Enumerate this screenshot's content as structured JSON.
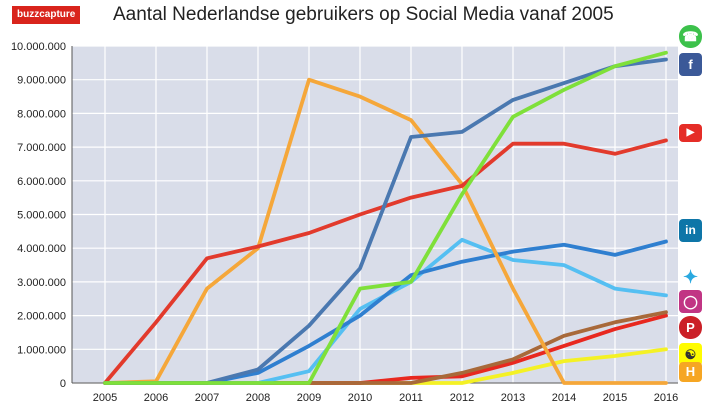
{
  "brand": {
    "logo_text": "buzzcapture"
  },
  "chart_data": {
    "type": "line",
    "title": "Aantal Nederlandse gebruikers op Social Media vanaf 2005",
    "x": [
      "2005",
      "2006",
      "2007",
      "2008",
      "2009",
      "2010",
      "2011",
      "2012",
      "2013",
      "2014",
      "2015",
      "2016"
    ],
    "ylim": [
      0,
      10000000
    ],
    "yticks": [
      "0",
      "1.000.000",
      "2.000.000",
      "3.000.000",
      "4.000.000",
      "5.000.000",
      "6.000.000",
      "7.000.000",
      "8.000.000",
      "9.000.000",
      "10.000.000"
    ],
    "grid": true,
    "legend": "right, platform icons at series ends",
    "series": [
      {
        "icon": "whatsapp-icon",
        "color": "#7fe03a",
        "values": [
          0,
          0,
          0,
          0,
          0,
          2800000,
          3000000,
          5600000,
          7900000,
          8700000,
          9400000,
          9800000
        ]
      },
      {
        "icon": "facebook-icon",
        "color": "#4a78b0",
        "values": [
          0,
          0,
          0,
          400000,
          1700000,
          3400000,
          7300000,
          7450000,
          8400000,
          8900000,
          9400000,
          9600000
        ]
      },
      {
        "icon": "youtube-icon",
        "color": "#e23a2c",
        "values": [
          0,
          1800000,
          3700000,
          4050000,
          4450000,
          5000000,
          5500000,
          5850000,
          7100000,
          7100000,
          6800000,
          7200000
        ]
      },
      {
        "icon": "hyves-icon",
        "color": "#f5a73a",
        "values": [
          0,
          50000,
          2800000,
          4000000,
          9000000,
          8500000,
          7800000,
          5900000,
          2800000,
          0,
          0,
          0
        ]
      },
      {
        "icon": "linkedin-icon",
        "color": "#2f7fd0",
        "values": [
          0,
          0,
          0,
          300000,
          1100000,
          2000000,
          3200000,
          3600000,
          3900000,
          4100000,
          3800000,
          4200000
        ]
      },
      {
        "icon": "twitter-icon",
        "color": "#55bff2",
        "values": [
          0,
          0,
          0,
          0,
          350000,
          2200000,
          3000000,
          4250000,
          3650000,
          3500000,
          2800000,
          2600000
        ]
      },
      {
        "icon": "instagram-icon",
        "color": "#a8693a",
        "values": [
          0,
          0,
          0,
          0,
          0,
          0,
          0,
          300000,
          700000,
          1400000,
          1800000,
          2100000
        ]
      },
      {
        "icon": "pinterest-icon",
        "color": "#e8281f",
        "values": [
          0,
          0,
          0,
          0,
          0,
          0,
          150000,
          200000,
          600000,
          1100000,
          1600000,
          2000000
        ]
      },
      {
        "icon": "snapchat-icon",
        "color": "#f4f125",
        "values": [
          0,
          0,
          0,
          0,
          0,
          0,
          0,
          0,
          300000,
          650000,
          800000,
          1000000
        ]
      }
    ]
  }
}
